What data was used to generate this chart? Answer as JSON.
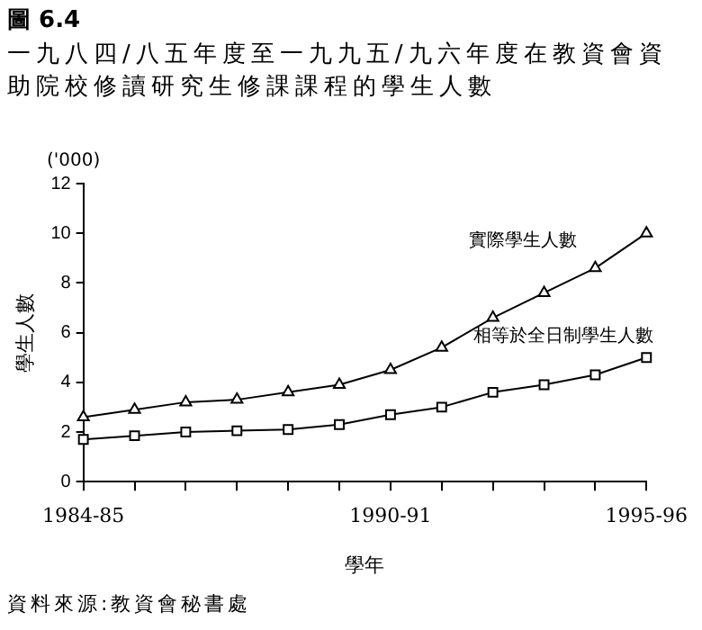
{
  "chart_data": {
    "type": "line",
    "title": "圖 6.4",
    "subtitle": "一九八四/八五年度至一九九五/九六年度在教資會資助院校修讀研究生修課課程的學生人數",
    "ylabel": "學生人數",
    "xlabel": "學年",
    "annotations": [
      "('000)",
      "資料來源:教資會秘書處"
    ],
    "categories": [
      "1984-85",
      null,
      null,
      null,
      null,
      null,
      "1990-91",
      null,
      null,
      null,
      null,
      "1995-96"
    ],
    "series": [
      {
        "name": "實際學生人數",
        "color": "#000000",
        "marker": "triangle",
        "values": [
          2.6,
          2.9,
          3.2,
          3.3,
          3.6,
          3.9,
          4.5,
          5.4,
          6.6,
          7.6,
          8.6,
          10.0
        ]
      },
      {
        "name": "相等於全日制學生人數",
        "color": "#000000",
        "marker": "square",
        "values": [
          1.7,
          1.85,
          2.0,
          2.05,
          2.1,
          2.3,
          2.7,
          3.0,
          3.6,
          3.9,
          4.3,
          5.0
        ]
      }
    ],
    "ylim": [
      0,
      12
    ],
    "yticks": [
      0,
      2,
      4,
      6,
      8,
      10,
      12
    ],
    "grid": false,
    "legend": false
  }
}
